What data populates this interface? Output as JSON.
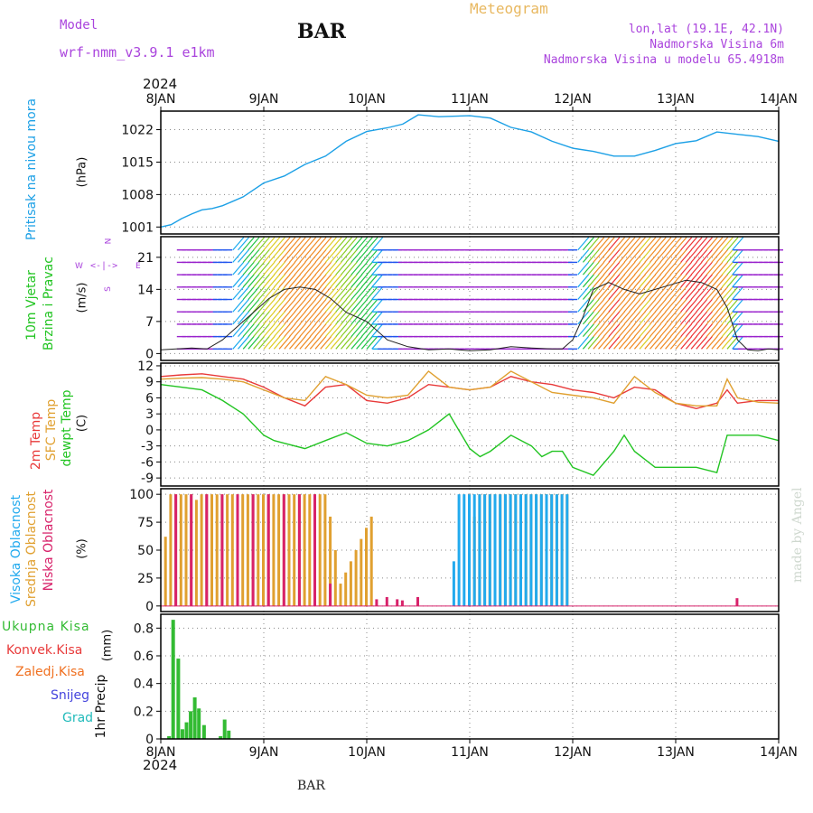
{
  "header": {
    "model_label": "Model",
    "model_name": "wrf-nmm_v3.9.1  e1km",
    "station": "BAR",
    "meteogram": "Meteogram",
    "lonlat": "lon,lat (19.1E, 42.1N)",
    "altitude": "Nadmorska Visina 6m",
    "model_altitude": "Nadmorska Visina u modelu 65.4918m",
    "year_top": "2024",
    "year_bottom": "2024",
    "footer_station": "BAR",
    "credit": "made by Angel"
  },
  "colors": {
    "pressure": "#1ca0e6",
    "temp2m": "#e83a3a",
    "sfc": "#e0a030",
    "dewpt": "#22c422",
    "high_cloud": "#22aaee",
    "mid_cloud": "#e0a030",
    "low_cloud": "#d8226a",
    "precip": "#33bb33",
    "convective": "#e83a3a",
    "freezing": "#f07020",
    "snow": "#4444dd",
    "hail": "#22bbbb",
    "compass": "#aa44dd"
  },
  "chart_data": [
    {
      "type": "line",
      "name": "pressure",
      "ylabel": "Pritisak na nivou mora",
      "unit": "(hPa)",
      "x_ticks": [
        "8JAN",
        "9JAN",
        "10JAN",
        "11JAN",
        "12JAN",
        "13JAN",
        "14JAN"
      ],
      "yticks": [
        1001,
        1008,
        1015,
        1022
      ],
      "ylim": [
        999.5,
        1026
      ],
      "series": [
        {
          "x": [
            0,
            0.1,
            0.2,
            0.3,
            0.4,
            0.5,
            0.6,
            0.8,
            1.0,
            1.2,
            1.4,
            1.6,
            1.8,
            2.0,
            2.2,
            2.35,
            2.5,
            2.7,
            3.0,
            3.2,
            3.4,
            3.6,
            3.8,
            4.0,
            4.2,
            4.4,
            4.6,
            4.8,
            5.0,
            5.2,
            5.4,
            5.6,
            5.8,
            6.0
          ],
          "y": [
            1001,
            1001.5,
            1002.8,
            1003.8,
            1004.7,
            1005,
            1005.6,
            1007.5,
            1010.5,
            1012,
            1014.5,
            1016.3,
            1019.5,
            1021.6,
            1022.4,
            1023.2,
            1025.2,
            1024.8,
            1025,
            1024.5,
            1022.5,
            1021.5,
            1019.5,
            1018,
            1017.3,
            1016.3,
            1016.3,
            1017.5,
            1019,
            1019.6,
            1021.5,
            1021,
            1020.5,
            1019.5
          ]
        }
      ]
    },
    {
      "type": "line",
      "name": "wind",
      "ylabel1": "10m Vjetar",
      "ylabel2": "Brzina i Pravac",
      "unit": "(m/s)",
      "yticks": [
        0,
        7,
        14,
        21
      ],
      "ylim": [
        -1.5,
        25.5
      ],
      "compass": {
        "n": "N",
        "s": "S",
        "w": "W",
        "e": "E"
      },
      "series": [
        {
          "name": "speed",
          "x": [
            0,
            0.15,
            0.3,
            0.45,
            0.6,
            0.75,
            0.9,
            1.05,
            1.2,
            1.35,
            1.5,
            1.65,
            1.8,
            2.0,
            2.2,
            2.4,
            2.6,
            2.8,
            3.0,
            3.2,
            3.4,
            3.6,
            3.8,
            3.9,
            4.0,
            4.1,
            4.2,
            4.35,
            4.5,
            4.65,
            4.8,
            4.95,
            5.1,
            5.25,
            5.4,
            5.5,
            5.6,
            5.7,
            5.8,
            5.9,
            6.0
          ],
          "y": [
            0.8,
            1.0,
            1.2,
            1.0,
            3.0,
            6.0,
            9.0,
            12.0,
            14.0,
            14.5,
            14.0,
            12.0,
            9.0,
            7.0,
            3.0,
            1.5,
            0.8,
            1.0,
            0.6,
            0.8,
            1.5,
            1.2,
            1.0,
            1.0,
            3.0,
            8.0,
            14.0,
            15.5,
            14.0,
            13.0,
            14.0,
            15.0,
            16.0,
            15.5,
            14.0,
            10.0,
            3.0,
            0.8,
            0.6,
            1.0,
            0.8
          ]
        }
      ]
    },
    {
      "type": "line",
      "name": "temperature",
      "ylabel1": "2m Temp",
      "ylabel2": "SFC Temp",
      "ylabel3": "dewpt Temp",
      "unit": "(C)",
      "yticks": [
        -9,
        -6,
        -3,
        0,
        3,
        6,
        9,
        12
      ],
      "ylim": [
        -10.5,
        12.5
      ],
      "series": [
        {
          "name": "2m Temp",
          "x": [
            0,
            0.2,
            0.4,
            0.6,
            0.8,
            1.0,
            1.2,
            1.4,
            1.6,
            1.8,
            2.0,
            2.2,
            2.4,
            2.6,
            2.8,
            3.0,
            3.2,
            3.4,
            3.6,
            3.8,
            4.0,
            4.2,
            4.4,
            4.6,
            4.8,
            5.0,
            5.2,
            5.4,
            5.5,
            5.6,
            5.8,
            6.0
          ],
          "y": [
            10,
            10.3,
            10.5,
            10,
            9.5,
            8,
            6,
            4.5,
            8,
            8.5,
            5.5,
            5,
            6,
            8.5,
            8,
            7.5,
            8,
            10,
            9,
            8.5,
            7.5,
            7,
            6,
            8,
            7.5,
            5,
            4,
            5,
            7.5,
            5,
            5.5,
            5.5
          ]
        },
        {
          "name": "SFC Temp",
          "x": [
            0,
            0.2,
            0.4,
            0.6,
            0.8,
            1.0,
            1.2,
            1.4,
            1.6,
            1.8,
            2.0,
            2.2,
            2.4,
            2.6,
            2.8,
            3.0,
            3.2,
            3.4,
            3.6,
            3.8,
            4.0,
            4.2,
            4.4,
            4.6,
            4.8,
            5.0,
            5.2,
            5.4,
            5.5,
            5.6,
            5.8,
            6.0
          ],
          "y": [
            9.5,
            9.7,
            9.8,
            9.5,
            9,
            7.5,
            6,
            5.5,
            10,
            8.5,
            6.5,
            6,
            6.5,
            11,
            8,
            7.5,
            8,
            11,
            9,
            7,
            6.5,
            6,
            5,
            10,
            7,
            5,
            4.5,
            4.5,
            9.5,
            6,
            5.2,
            5
          ]
        },
        {
          "name": "dewpt Temp",
          "x": [
            0,
            0.2,
            0.4,
            0.6,
            0.8,
            1.0,
            1.1,
            1.2,
            1.4,
            1.6,
            1.8,
            2.0,
            2.2,
            2.4,
            2.6,
            2.8,
            3.0,
            3.1,
            3.2,
            3.4,
            3.6,
            3.7,
            3.8,
            3.9,
            4.0,
            4.2,
            4.4,
            4.5,
            4.6,
            4.8,
            5.0,
            5.2,
            5.4,
            5.5,
            5.6,
            5.8,
            6.0
          ],
          "y": [
            8.5,
            8,
            7.5,
            5.5,
            3,
            -1,
            -2,
            -2.5,
            -3.5,
            -2,
            -0.5,
            -2.5,
            -3,
            -2,
            0,
            3,
            -3.5,
            -5,
            -4,
            -1,
            -3,
            -5,
            -4,
            -4,
            -7,
            -8.5,
            -4,
            -1,
            -4,
            -7,
            -7,
            -7,
            -8,
            -1,
            -1,
            -1,
            -2
          ]
        }
      ]
    },
    {
      "type": "bar",
      "name": "cloud cover",
      "ylabel1": "Visoka Oblacnost",
      "ylabel2": "Srednja Oblacnost",
      "ylabel3": "Niska Oblacnost",
      "unit": "(%)",
      "yticks": [
        0,
        25,
        50,
        75,
        100
      ],
      "ylim": [
        -5,
        105
      ],
      "high": {
        "x": [
          2.85,
          2.9,
          2.95,
          3.0,
          3.05,
          3.1,
          3.15,
          3.2,
          3.25,
          3.3,
          3.35,
          3.4,
          3.45,
          3.5,
          3.55,
          3.6,
          3.65,
          3.7,
          3.75,
          3.8,
          3.85,
          3.9,
          3.95
        ],
        "y": [
          40,
          100,
          100,
          100,
          100,
          100,
          100,
          100,
          100,
          100,
          100,
          100,
          100,
          100,
          100,
          100,
          100,
          100,
          100,
          100,
          100,
          100,
          100
        ]
      },
      "mid": {
        "x": [
          0.05,
          0.1,
          0.15,
          0.2,
          0.25,
          0.3,
          0.35,
          0.4,
          0.45,
          0.5,
          0.55,
          0.6,
          0.65,
          0.7,
          0.75,
          0.8,
          0.85,
          0.9,
          0.95,
          1.0,
          1.05,
          1.1,
          1.15,
          1.2,
          1.25,
          1.3,
          1.35,
          1.4,
          1.45,
          1.5,
          1.55,
          1.6,
          1.65,
          1.7,
          1.75,
          1.8,
          1.85,
          1.9,
          1.95,
          2.0,
          2.05,
          3.0,
          3.05,
          3.1,
          3.15,
          3.2,
          3.25,
          3.3,
          3.35,
          3.4,
          3.45,
          3.5,
          3.55,
          3.6,
          3.65,
          3.7,
          3.75,
          3.8,
          3.85,
          3.9,
          3.95
        ],
        "y": [
          62,
          100,
          100,
          100,
          100,
          100,
          95,
          100,
          100,
          100,
          100,
          100,
          100,
          100,
          100,
          100,
          100,
          100,
          100,
          100,
          100,
          100,
          100,
          100,
          100,
          100,
          100,
          100,
          100,
          100,
          100,
          100,
          80,
          50,
          20,
          30,
          40,
          50,
          60,
          70,
          80,
          100,
          80,
          100,
          100,
          100,
          100,
          100,
          100,
          100,
          100,
          100,
          100,
          100,
          100,
          100,
          100,
          100,
          100,
          100,
          100
        ]
      },
      "low": {
        "x": [
          0.15,
          0.3,
          0.45,
          0.6,
          0.75,
          0.9,
          1.05,
          1.2,
          1.35,
          1.5,
          1.65,
          2.1,
          2.2,
          2.3,
          2.35,
          2.5,
          5.6
        ],
        "y": [
          100,
          100,
          100,
          100,
          100,
          100,
          100,
          100,
          100,
          100,
          20,
          6,
          8,
          6,
          5,
          8,
          7
        ]
      }
    },
    {
      "type": "bar",
      "name": "precipitation",
      "ylabel": "1hr Precip",
      "unit": "(mm)",
      "legend": [
        "Ukupna Kisa",
        "Konvek.Kisa",
        "Zaledj.Kisa",
        "Snijeg",
        "Grad"
      ],
      "yticks": [
        0,
        0.2,
        0.4,
        0.6,
        0.8
      ],
      "ylim": [
        0,
        0.9
      ],
      "x": [
        0.08,
        0.12,
        0.17,
        0.21,
        0.25,
        0.29,
        0.33,
        0.37,
        0.42,
        0.58,
        0.62,
        0.66
      ],
      "values": [
        0.02,
        0.86,
        0.58,
        0.07,
        0.12,
        0.2,
        0.3,
        0.22,
        0.1,
        0.02,
        0.14,
        0.06
      ]
    }
  ]
}
